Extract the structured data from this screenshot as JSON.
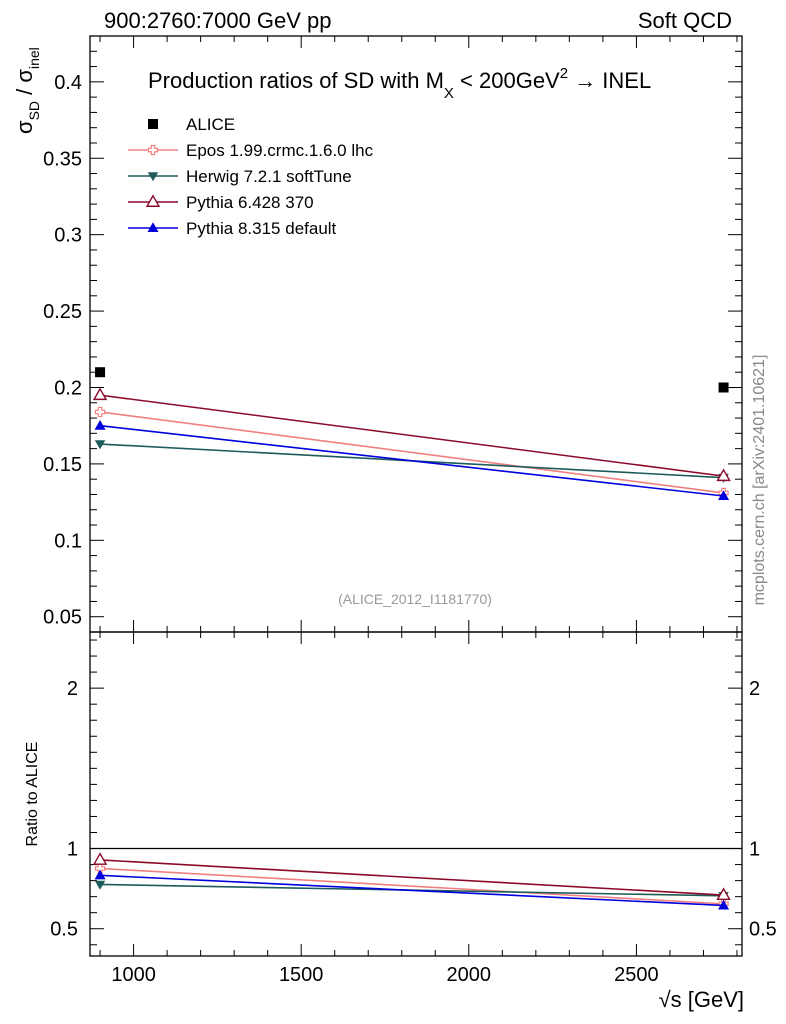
{
  "header": {
    "left": "900:2760:7000 GeV pp",
    "right": "Soft QCD"
  },
  "plot": {
    "title_main": "Production ratios of SD with M",
    "title_sub": "X",
    "title_mid": " < 200GeV",
    "title_sup": "2",
    "title_end": " → INEL",
    "ref_label": "(ALICE_2012_I1181770)",
    "ylabel_sigma1": "σ",
    "ylabel_sub1": "SD",
    "ylabel_slash": " / ",
    "ylabel_sigma2": "σ",
    "ylabel_sub2": "inel",
    "xlabel": "√s [GeV]",
    "ratio_ylabel": "Ratio to ALICE",
    "watermark": "mcplots.cern.ch [arXiv:2401.10621]"
  },
  "chart_data": {
    "type": "line",
    "x": [
      900,
      2760
    ],
    "xlim": [
      870,
      2815
    ],
    "xticks": [
      1000,
      1500,
      2000,
      2500
    ],
    "xtick_labels": [
      "1000",
      "1500",
      "2000",
      "2500"
    ],
    "main": {
      "ylim": [
        0.04,
        0.43
      ],
      "yticks": [
        0.05,
        0.1,
        0.15,
        0.2,
        0.25,
        0.3,
        0.35,
        0.4
      ],
      "ytick_labels": [
        "0.05",
        "0.1",
        "0.15",
        "0.2",
        "0.25",
        "0.3",
        "0.35",
        "0.4"
      ]
    },
    "ratio": {
      "ylim": [
        0.33,
        2.35
      ],
      "yticks": [
        0.5,
        1,
        2
      ],
      "ytick_labels": [
        "0.5",
        "1",
        "2"
      ],
      "reference": 1
    },
    "series": [
      {
        "name": "ALICE",
        "color": "#000000",
        "marker": "square",
        "is_data": true,
        "values": [
          0.21,
          0.2
        ],
        "ratio": [
          1.0,
          1.0
        ]
      },
      {
        "name": "Epos 1.99.crmc.1.6.0 lhc",
        "color": "#f08080",
        "marker": "cross-open",
        "values": [
          0.184,
          0.131
        ],
        "ratio": [
          0.876,
          0.655
        ]
      },
      {
        "name": "Herwig 7.2.1 softTune",
        "color": "#1e5b5b",
        "marker": "triangle-down",
        "values": [
          0.163,
          0.141
        ],
        "ratio": [
          0.776,
          0.705
        ]
      },
      {
        "name": "Pythia 6.428 370",
        "color": "#8b0a2a",
        "marker": "triangle-open",
        "values": [
          0.195,
          0.142
        ],
        "ratio": [
          0.929,
          0.71
        ]
      },
      {
        "name": "Pythia 8.315 default",
        "color": "#0000dd",
        "marker": "triangle-up",
        "values": [
          0.175,
          0.129
        ],
        "ratio": [
          0.833,
          0.645
        ]
      }
    ]
  }
}
